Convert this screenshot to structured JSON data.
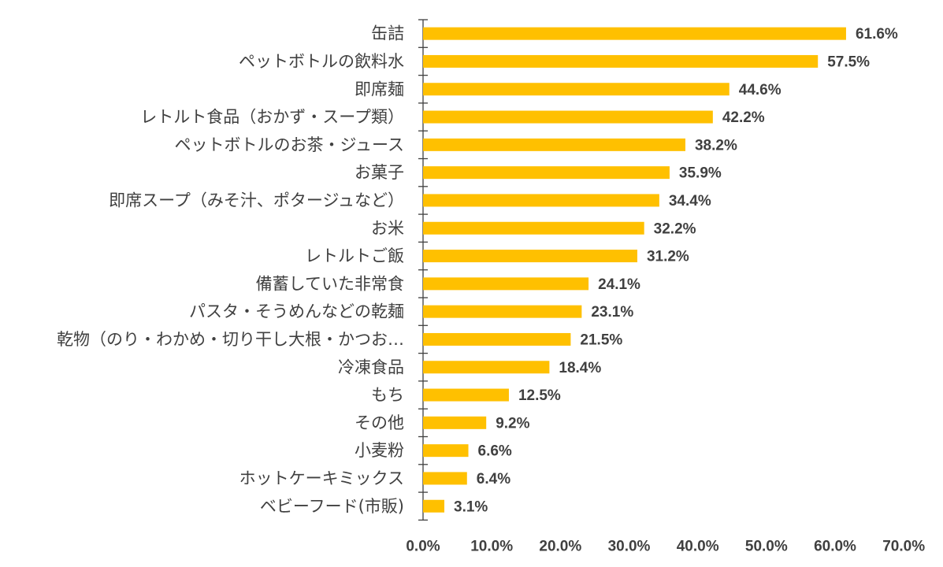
{
  "chart_data": {
    "type": "bar",
    "orientation": "horizontal",
    "title": "",
    "xlabel": "",
    "ylabel": "",
    "xlim": [
      0,
      70
    ],
    "grid": false,
    "bar_color": "#FFC000",
    "text_color": "#404040",
    "value_suffix": "%",
    "categories": [
      "缶詰",
      "ペットボトルの飲料水",
      "即席麺",
      "レトルト食品（おかず・スープ類）",
      "ペットボトルのお茶・ジュース",
      "お菓子",
      "即席スープ（みそ汁、ポタージュなど）",
      "お米",
      "レトルトご飯",
      "備蓄していた非常食",
      "パスタ・そうめんなどの乾麺",
      "乾物（のり・わかめ・切り干し大根・かつお…",
      "冷凍食品",
      "もち",
      "その他",
      "小麦粉",
      "ホットケーキミックス",
      "ベビーフード(市販)"
    ],
    "values": [
      61.6,
      57.5,
      44.6,
      42.2,
      38.2,
      35.9,
      34.4,
      32.2,
      31.2,
      24.1,
      23.1,
      21.5,
      18.4,
      12.5,
      9.2,
      6.6,
      6.4,
      3.1
    ],
    "value_labels": [
      "61.6%",
      "57.5%",
      "44.6%",
      "42.2%",
      "38.2%",
      "35.9%",
      "34.4%",
      "32.2%",
      "31.2%",
      "24.1%",
      "23.1%",
      "21.5%",
      "18.4%",
      "12.5%",
      "9.2%",
      "6.6%",
      "6.4%",
      "3.1%"
    ],
    "x_ticks": [
      0,
      10,
      20,
      30,
      40,
      50,
      60,
      70
    ],
    "x_tick_labels": [
      "0.0%",
      "10.0%",
      "20.0%",
      "30.0%",
      "40.0%",
      "50.0%",
      "60.0%",
      "70.0%"
    ]
  }
}
